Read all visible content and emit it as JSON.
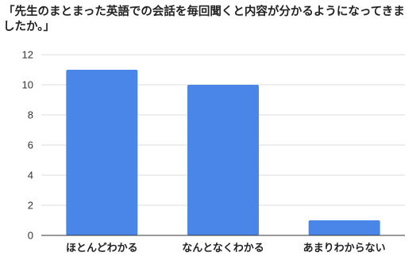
{
  "chart_data": {
    "type": "bar",
    "title": "「先生のまとまった英語での会話を毎回聞くと内容が分かるようになってきましたか。」",
    "categories": [
      "ほとんどわかる",
      "なんとなくわかる",
      "あまりわからない"
    ],
    "values": [
      11,
      10,
      1
    ],
    "ylim": [
      0,
      12
    ],
    "yticks": [
      0,
      2,
      4,
      6,
      8,
      10,
      12
    ],
    "xlabel": "",
    "ylabel": "",
    "grid": true,
    "legend": "none",
    "colors": {
      "bar": "#4a86e8",
      "grid": "#dddddd",
      "axis": "#333333"
    }
  }
}
